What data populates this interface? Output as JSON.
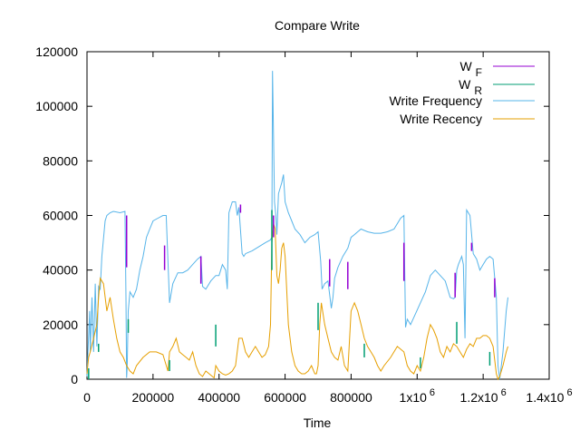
{
  "chart_data": {
    "type": "line",
    "title": "Compare Write",
    "xlabel": "Time",
    "ylabel": "",
    "xlim": [
      0,
      1400000
    ],
    "ylim": [
      0,
      120000
    ],
    "x_ticks": [
      {
        "value": 0,
        "label": "0",
        "sup": ""
      },
      {
        "value": 200000,
        "label": "200000",
        "sup": ""
      },
      {
        "value": 400000,
        "label": "400000",
        "sup": ""
      },
      {
        "value": 600000,
        "label": "600000",
        "sup": ""
      },
      {
        "value": 800000,
        "label": "800000",
        "sup": ""
      },
      {
        "value": 1000000,
        "label": "1x10",
        "sup": "6"
      },
      {
        "value": 1200000,
        "label": "1.2x10",
        "sup": "6"
      },
      {
        "value": 1400000,
        "label": "1.4x10",
        "sup": "6"
      }
    ],
    "y_ticks": [
      {
        "value": 0,
        "label": "0"
      },
      {
        "value": 20000,
        "label": "20000"
      },
      {
        "value": 40000,
        "label": "40000"
      },
      {
        "value": 60000,
        "label": "60000"
      },
      {
        "value": 80000,
        "label": "80000"
      },
      {
        "value": 100000,
        "label": "100000"
      },
      {
        "value": 120000,
        "label": "120000"
      }
    ],
    "legend_position": "top-right",
    "grid": false,
    "series": [
      {
        "name": "W",
        "name_sub": "F",
        "color": "#9400d3",
        "style": "segments",
        "segments": [
          [
            120000,
            41000,
            120000,
            60000
          ],
          [
            235000,
            40000,
            235000,
            49000
          ],
          [
            345000,
            35000,
            345000,
            45000
          ],
          [
            465000,
            61000,
            465000,
            64000
          ],
          [
            565000,
            52000,
            565000,
            60000
          ],
          [
            735000,
            34000,
            735000,
            44000
          ],
          [
            790000,
            33000,
            790000,
            43000
          ],
          [
            960000,
            36000,
            960000,
            50000
          ],
          [
            1115000,
            30000,
            1115000,
            39000
          ],
          [
            1165000,
            47000,
            1165000,
            50000
          ],
          [
            1235000,
            30000,
            1235000,
            37000
          ]
        ]
      },
      {
        "name": "W",
        "name_sub": "R",
        "color": "#009e73",
        "style": "segments",
        "segments": [
          [
            5000,
            0,
            5000,
            4000
          ],
          [
            35000,
            10000,
            35000,
            13000
          ],
          [
            125000,
            17000,
            125000,
            22000
          ],
          [
            250000,
            3000,
            250000,
            7000
          ],
          [
            390000,
            12000,
            390000,
            20000
          ],
          [
            560000,
            40000,
            560000,
            62000
          ],
          [
            700000,
            18000,
            700000,
            28000
          ],
          [
            840000,
            8000,
            840000,
            13000
          ],
          [
            1010000,
            4000,
            1010000,
            8000
          ],
          [
            1120000,
            13000,
            1120000,
            21000
          ],
          [
            1220000,
            5000,
            1220000,
            10000
          ]
        ]
      },
      {
        "name": "Write Frequency",
        "color": "#56b4e9",
        "style": "line",
        "x": [
          0,
          8000,
          10000,
          15000,
          20000,
          25000,
          30000,
          35000,
          40000,
          45000,
          55000,
          60000,
          70000,
          80000,
          100000,
          115000,
          118000,
          120000,
          122000,
          125000,
          130000,
          140000,
          150000,
          160000,
          170000,
          180000,
          190000,
          200000,
          215000,
          230000,
          240000,
          250000,
          260000,
          275000,
          290000,
          305000,
          320000,
          335000,
          345000,
          350000,
          360000,
          375000,
          390000,
          400000,
          410000,
          420000,
          425000,
          430000,
          440000,
          450000,
          455000,
          460000,
          470000,
          475000,
          480000,
          490000,
          500000,
          520000,
          540000,
          555000,
          560000,
          562000,
          565000,
          568000,
          572000,
          575000,
          580000,
          590000,
          595000,
          600000,
          610000,
          620000,
          630000,
          645000,
          660000,
          675000,
          690000,
          700000,
          708000,
          712000,
          720000,
          730000,
          740000,
          745000,
          750000,
          760000,
          775000,
          790000,
          800000,
          810000,
          820000,
          830000,
          850000,
          870000,
          890000,
          910000,
          930000,
          950000,
          960000,
          965000,
          970000,
          980000,
          995000,
          1010000,
          1025000,
          1040000,
          1055000,
          1070000,
          1085000,
          1100000,
          1110000,
          1115000,
          1120000,
          1125000,
          1135000,
          1140000,
          1145000,
          1150000,
          1160000,
          1170000,
          1180000,
          1190000,
          1200000,
          1210000,
          1220000,
          1230000,
          1240000,
          1245000,
          1250000,
          1260000,
          1270000,
          1275000
        ],
        "values": [
          1000,
          25000,
          10000,
          30000,
          10000,
          35000,
          12000,
          34000,
          33000,
          45000,
          58000,
          60000,
          61000,
          61500,
          61000,
          61500,
          30000,
          500,
          5000,
          25000,
          32000,
          30000,
          33000,
          40000,
          45000,
          52000,
          55000,
          58000,
          59000,
          60000,
          60000,
          28000,
          35000,
          39000,
          39000,
          40000,
          42000,
          44000,
          45000,
          34000,
          33000,
          36000,
          38000,
          38000,
          42000,
          40000,
          33000,
          61000,
          65000,
          65000,
          60000,
          63000,
          46000,
          45000,
          46000,
          46500,
          47000,
          48500,
          50000,
          51000,
          52000,
          113000,
          90000,
          65000,
          60000,
          53000,
          68000,
          72000,
          75000,
          65000,
          61000,
          58000,
          55000,
          53000,
          50000,
          52000,
          53000,
          54000,
          43000,
          33000,
          35000,
          36000,
          26000,
          30000,
          37000,
          41000,
          45000,
          48000,
          52000,
          53000,
          54000,
          55000,
          54000,
          53500,
          53500,
          54000,
          55000,
          59000,
          60000,
          19000,
          22000,
          20000,
          24000,
          28000,
          32000,
          38000,
          40000,
          38000,
          36000,
          30000,
          29500,
          30000,
          40000,
          42000,
          45000,
          42000,
          15000,
          62000,
          60000,
          46000,
          44000,
          40000,
          42000,
          44000,
          45000,
          44000,
          30000,
          5000,
          0,
          10000,
          25000,
          30000
        ]
      },
      {
        "name": "Write Recency",
        "color": "#e69f00",
        "style": "line",
        "x": [
          0,
          5000,
          10000,
          20000,
          30000,
          35000,
          40000,
          50000,
          60000,
          70000,
          80000,
          90000,
          100000,
          110000,
          120000,
          130000,
          140000,
          150000,
          170000,
          190000,
          210000,
          230000,
          245000,
          250000,
          260000,
          270000,
          280000,
          290000,
          300000,
          310000,
          320000,
          330000,
          340000,
          350000,
          360000,
          370000,
          380000,
          385000,
          390000,
          400000,
          410000,
          420000,
          430000,
          440000,
          450000,
          460000,
          470000,
          480000,
          490000,
          500000,
          510000,
          520000,
          530000,
          540000,
          550000,
          556000,
          560000,
          565000,
          570000,
          575000,
          580000,
          585000,
          590000,
          595000,
          600000,
          610000,
          620000,
          630000,
          640000,
          650000,
          660000,
          670000,
          680000,
          690000,
          695000,
          700000,
          705000,
          710000,
          720000,
          730000,
          740000,
          750000,
          760000,
          770000,
          780000,
          790000,
          800000,
          810000,
          820000,
          830000,
          840000,
          850000,
          860000,
          870000,
          880000,
          890000,
          900000,
          920000,
          940000,
          960000,
          970000,
          980000,
          990000,
          1000000,
          1010000,
          1020000,
          1030000,
          1040000,
          1050000,
          1060000,
          1070000,
          1080000,
          1090000,
          1100000,
          1110000,
          1120000,
          1130000,
          1140000,
          1150000,
          1160000,
          1170000,
          1180000,
          1190000,
          1200000,
          1210000,
          1220000,
          1230000,
          1240000,
          1245000,
          1250000,
          1260000,
          1270000,
          1275000
        ],
        "values": [
          2000,
          8000,
          10000,
          15000,
          20000,
          30000,
          37000,
          35000,
          25000,
          30000,
          22000,
          15000,
          10000,
          8000,
          5000,
          3000,
          2000,
          5000,
          8000,
          10000,
          10000,
          9000,
          3000,
          10000,
          12000,
          15000,
          10000,
          9000,
          8000,
          7000,
          10000,
          5000,
          2000,
          1000,
          3000,
          2000,
          1000,
          500,
          5000,
          3000,
          2000,
          1500,
          2000,
          3000,
          5000,
          15000,
          15000,
          10000,
          8000,
          10000,
          12000,
          10000,
          8000,
          9000,
          12000,
          20000,
          50000,
          57000,
          55000,
          38000,
          35000,
          40000,
          48000,
          50000,
          45000,
          20000,
          10000,
          5000,
          3000,
          2000,
          2000,
          3000,
          5000,
          2000,
          2000,
          5000,
          20000,
          28000,
          20000,
          15000,
          10000,
          8000,
          7000,
          12000,
          5000,
          3000,
          25000,
          28000,
          25000,
          20000,
          15000,
          12000,
          10000,
          8000,
          5000,
          3000,
          5000,
          8000,
          12000,
          10000,
          5000,
          3000,
          2000,
          5000,
          3000,
          8000,
          15000,
          20000,
          18000,
          15000,
          10000,
          8000,
          12000,
          10000,
          13000,
          12000,
          10000,
          8000,
          11000,
          13000,
          12000,
          15000,
          15000,
          16000,
          16000,
          15000,
          12000,
          2000,
          0,
          1000,
          5000,
          10000,
          12000
        ]
      }
    ]
  }
}
